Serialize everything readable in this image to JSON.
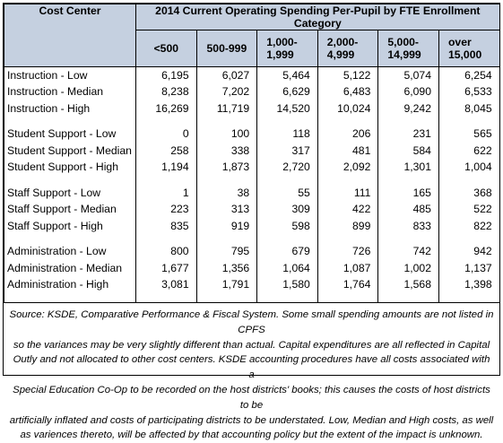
{
  "table": {
    "title": "2014 Current Operating Spending Per-Pupil by FTE Enrollment Category",
    "row_header": "Cost Center",
    "columns": [
      [
        "<500"
      ],
      [
        "500-999"
      ],
      [
        "1,000-",
        "1,999"
      ],
      [
        "2,000-",
        "4,999"
      ],
      [
        "5,000-",
        "14,999"
      ],
      [
        "over",
        "15,000"
      ]
    ],
    "groups": [
      {
        "rows": [
          {
            "label": "Instruction - Low",
            "values": [
              "6,195",
              "6,027",
              "5,464",
              "5,122",
              "5,074",
              "6,254"
            ]
          },
          {
            "label": "Instruction - Median",
            "values": [
              "8,238",
              "7,202",
              "6,629",
              "6,483",
              "6,090",
              "6,533"
            ]
          },
          {
            "label": "Instruction - High",
            "values": [
              "16,269",
              "11,719",
              "14,520",
              "10,024",
              "9,242",
              "8,045"
            ]
          }
        ]
      },
      {
        "rows": [
          {
            "label": "Student Support - Low",
            "values": [
              "0",
              "100",
              "118",
              "206",
              "231",
              "565"
            ]
          },
          {
            "label": "Student Support - Median",
            "values": [
              "258",
              "338",
              "317",
              "481",
              "584",
              "622"
            ]
          },
          {
            "label": "Student Support - High",
            "values": [
              "1,194",
              "1,873",
              "2,720",
              "2,092",
              "1,301",
              "1,004"
            ]
          }
        ]
      },
      {
        "rows": [
          {
            "label": "Staff Support - Low",
            "values": [
              "1",
              "38",
              "55",
              "111",
              "165",
              "368"
            ]
          },
          {
            "label": "Staff Support - Median",
            "values": [
              "223",
              "313",
              "309",
              "422",
              "485",
              "522"
            ]
          },
          {
            "label": "Staff Support - High",
            "values": [
              "835",
              "919",
              "598",
              "899",
              "833",
              "822"
            ]
          }
        ]
      },
      {
        "rows": [
          {
            "label": "Administration - Low",
            "values": [
              "800",
              "795",
              "679",
              "726",
              "742",
              "942"
            ]
          },
          {
            "label": "Administration - Median",
            "values": [
              "1,677",
              "1,356",
              "1,064",
              "1,087",
              "1,002",
              "1,137"
            ]
          },
          {
            "label": "Administration - High",
            "values": [
              "3,081",
              "1,791",
              "1,580",
              "1,764",
              "1,568",
              "1,398"
            ]
          }
        ]
      }
    ]
  },
  "footnote": [
    "Source: KSDE, Comparative Performance & Fiscal System.  Some small spending amounts are not listed in CPFS",
    "so the variances may be very slightly different than actual.  Capital expenditures are all reflected in Capital",
    "Outly and not allocated to other cost centers.  KSDE accounting procedures have all costs associated with a",
    "Special Education Co-Op to be recorded on the host districts' books; this causes the costs of host districts to be",
    "artificially inflated and costs of participating districts to be understated.  Low, Median and High costs, as well",
    "as variences thereto, will be affected by that accounting policy but the extent of the impact is unknown."
  ]
}
